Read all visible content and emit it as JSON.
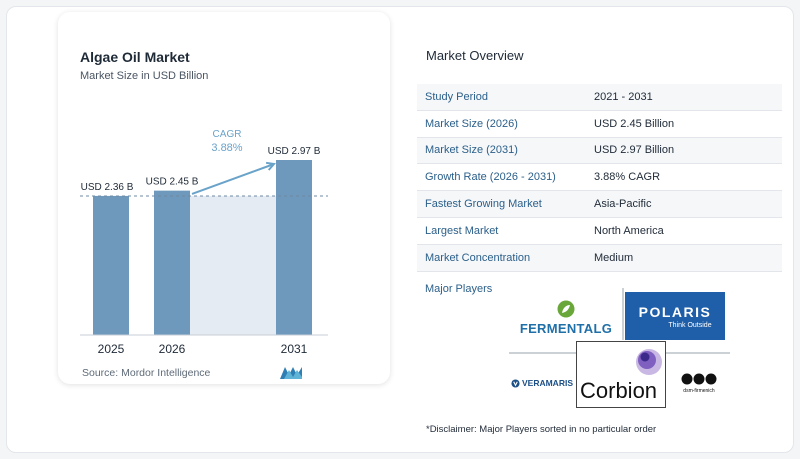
{
  "chart": {
    "title": "Algae Oil Market",
    "subtitle": "Market Size in USD Billion",
    "source": "Source:  Mordor Intelligence",
    "cagr_label": "CAGR",
    "cagr_value": "3.88%"
  },
  "chart_data": {
    "type": "bar",
    "categories": [
      "2025",
      "2026",
      "2031"
    ],
    "values": [
      2.36,
      2.45,
      2.97
    ],
    "data_labels": [
      "USD 2.36 B",
      "USD 2.45 B",
      "USD 2.97 B"
    ],
    "title": "Algae Oil Market",
    "subtitle": "Market Size in USD Billion",
    "xlabel": "",
    "ylabel": "",
    "annotations": [
      {
        "text": "CAGR",
        "value": "3.88%"
      }
    ],
    "grid": false,
    "colors": {
      "bar": "#6e98bc",
      "projection_band": "#e4ebf2",
      "accent": "#6aa3c9"
    }
  },
  "overview": {
    "title": "Market Overview",
    "rows": [
      {
        "label": "Study Period",
        "value": "2021 - 2031"
      },
      {
        "label": "Market Size (2026)",
        "value": "USD 2.45 Billion"
      },
      {
        "label": "Market Size (2031)",
        "value": "USD 2.97 Billion"
      },
      {
        "label": "Growth Rate (2026 - 2031)",
        "value": "3.88% CAGR"
      },
      {
        "label": "Fastest Growing Market",
        "value": "Asia-Pacific"
      },
      {
        "label": "Largest Market",
        "value": "North America"
      },
      {
        "label": "Market Concentration",
        "value": "Medium"
      }
    ],
    "major_players_label": "Major Players",
    "players": [
      "FERMENTALG",
      "POLARIS",
      "VERAMARIS",
      "Corbion",
      "dsm-firmenich"
    ],
    "polaris_tagline": "Think Outside",
    "disclaimer": "*Disclaimer: Major Players sorted in no particular order"
  }
}
